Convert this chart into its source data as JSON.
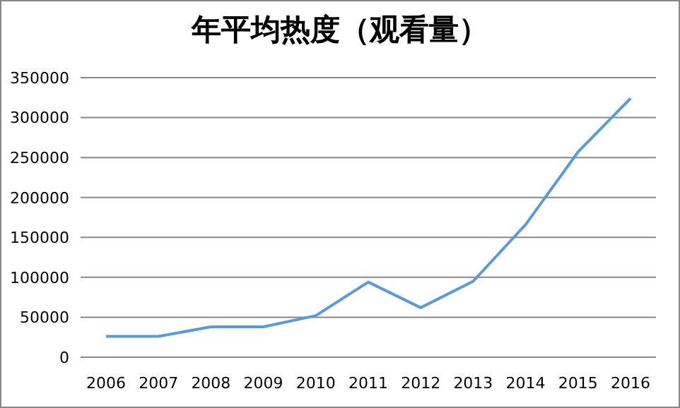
{
  "chart_data": {
    "type": "line",
    "title": "年平均热度（观看量）",
    "categories": [
      "2006",
      "2007",
      "2008",
      "2009",
      "2010",
      "2011",
      "2012",
      "2013",
      "2014",
      "2015",
      "2016"
    ],
    "series": [
      {
        "color": "#5b9bd5",
        "values": [
          26000,
          26000,
          38000,
          38000,
          52000,
          94000,
          62000,
          95000,
          166000,
          257000,
          324000
        ]
      }
    ],
    "ylim": [
      0,
      350000
    ],
    "yticks": [
      0,
      50000,
      100000,
      150000,
      200000,
      250000,
      300000,
      350000
    ],
    "grid": "y",
    "legend": false,
    "marker": "none"
  }
}
